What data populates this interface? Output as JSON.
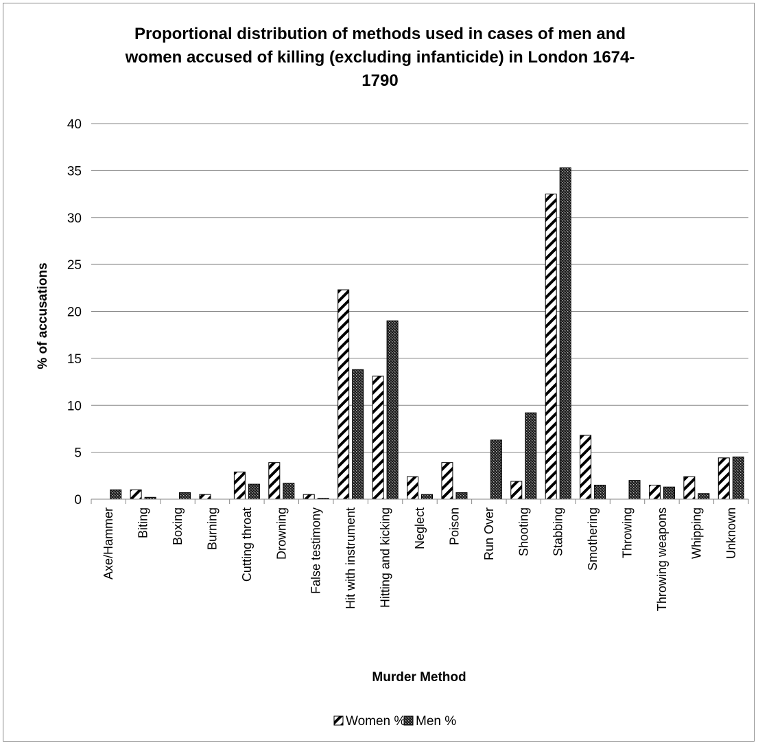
{
  "chart_data": {
    "type": "bar",
    "title_lines": [
      "Proportional distribution of methods used in cases of men and",
      "women accused of killing (excluding infanticide) in London 1674-",
      "1790"
    ],
    "xlabel": "Murder Method",
    "ylabel": "% of accusations",
    "ylim": [
      0,
      40
    ],
    "yticks": [
      0,
      5,
      10,
      15,
      20,
      25,
      30,
      35,
      40
    ],
    "grid": true,
    "legend_position": "bottom",
    "categories": [
      "Axe/Hammer",
      "Biting",
      "Boxing",
      "Burning",
      "Cutting throat",
      "Drowning",
      "False testimony",
      "Hit with instrument",
      "Hitting and kicking",
      "Neglect",
      "Poison",
      "Run Over",
      "Shooting",
      "Stabbing",
      "Smothering",
      "Throwing",
      "Throwing weapons",
      "Whipping",
      "Unknown"
    ],
    "series": [
      {
        "name": "Women %",
        "pattern": "diagonal-stripes",
        "values": [
          0,
          1.0,
          0,
          0.5,
          2.9,
          3.9,
          0.5,
          22.3,
          13.1,
          2.4,
          3.9,
          0,
          1.9,
          32.5,
          6.8,
          0,
          1.5,
          2.4,
          4.4
        ]
      },
      {
        "name": "Men %",
        "pattern": "dark-dots",
        "values": [
          1.0,
          0.2,
          0.7,
          0,
          1.6,
          1.7,
          0.1,
          13.8,
          19.0,
          0.5,
          0.7,
          6.3,
          9.2,
          35.3,
          1.5,
          2.0,
          1.3,
          0.6,
          4.5
        ]
      }
    ]
  }
}
